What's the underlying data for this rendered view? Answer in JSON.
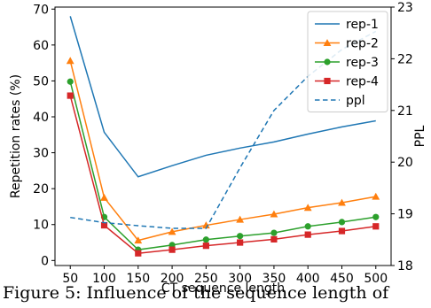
{
  "chart_data": {
    "type": "line",
    "xlabel": "CT sequence length",
    "ylabel_left": "Repetition rates (%)",
    "ylabel_right": "PPL",
    "x": [
      50,
      100,
      150,
      200,
      250,
      300,
      350,
      400,
      450,
      500
    ],
    "x_ticks": [
      "50",
      "100",
      "150",
      "200",
      "250",
      "300",
      "350",
      "400",
      "450",
      "500"
    ],
    "ylim_left": [
      0,
      70
    ],
    "y_ticks_left": [
      "0",
      "10",
      "20",
      "30",
      "40",
      "50",
      "60",
      "70"
    ],
    "ylim_right": [
      18,
      23
    ],
    "y_ticks_right": [
      "18",
      "19",
      "20",
      "21",
      "22",
      "23"
    ],
    "grid": false,
    "legend_position": "top-right",
    "series": [
      {
        "name": "rep-1",
        "axis": "left",
        "color": "#1f77b4",
        "marker": "none",
        "style": "solid",
        "values": [
          68.0,
          35.7,
          23.3,
          26.4,
          29.3,
          31.3,
          33.0,
          35.2,
          37.2,
          38.9
        ]
      },
      {
        "name": "rep-2",
        "axis": "left",
        "color": "#ff7f0e",
        "marker": "triangle",
        "style": "solid",
        "values": [
          55.6,
          17.5,
          5.6,
          8.0,
          9.8,
          11.4,
          12.9,
          14.7,
          16.1,
          17.8
        ]
      },
      {
        "name": "rep-3",
        "axis": "left",
        "color": "#2ca02c",
        "marker": "circle",
        "style": "solid",
        "values": [
          49.8,
          12.1,
          3.0,
          4.3,
          5.8,
          6.8,
          7.7,
          9.5,
          10.7,
          12.1
        ]
      },
      {
        "name": "rep-4",
        "axis": "left",
        "color": "#d62728",
        "marker": "square",
        "style": "solid",
        "values": [
          45.9,
          9.8,
          2.0,
          3.0,
          4.1,
          5.0,
          5.9,
          7.2,
          8.2,
          9.5
        ]
      },
      {
        "name": "ppl",
        "axis": "right",
        "color": "#1f77b4",
        "marker": "none",
        "style": "dashed",
        "values": [
          18.93,
          18.83,
          18.77,
          18.72,
          18.72,
          19.89,
          21.0,
          21.66,
          22.18,
          22.53
        ]
      }
    ]
  },
  "caption": "Figure 5: Influence of the sequence length of"
}
